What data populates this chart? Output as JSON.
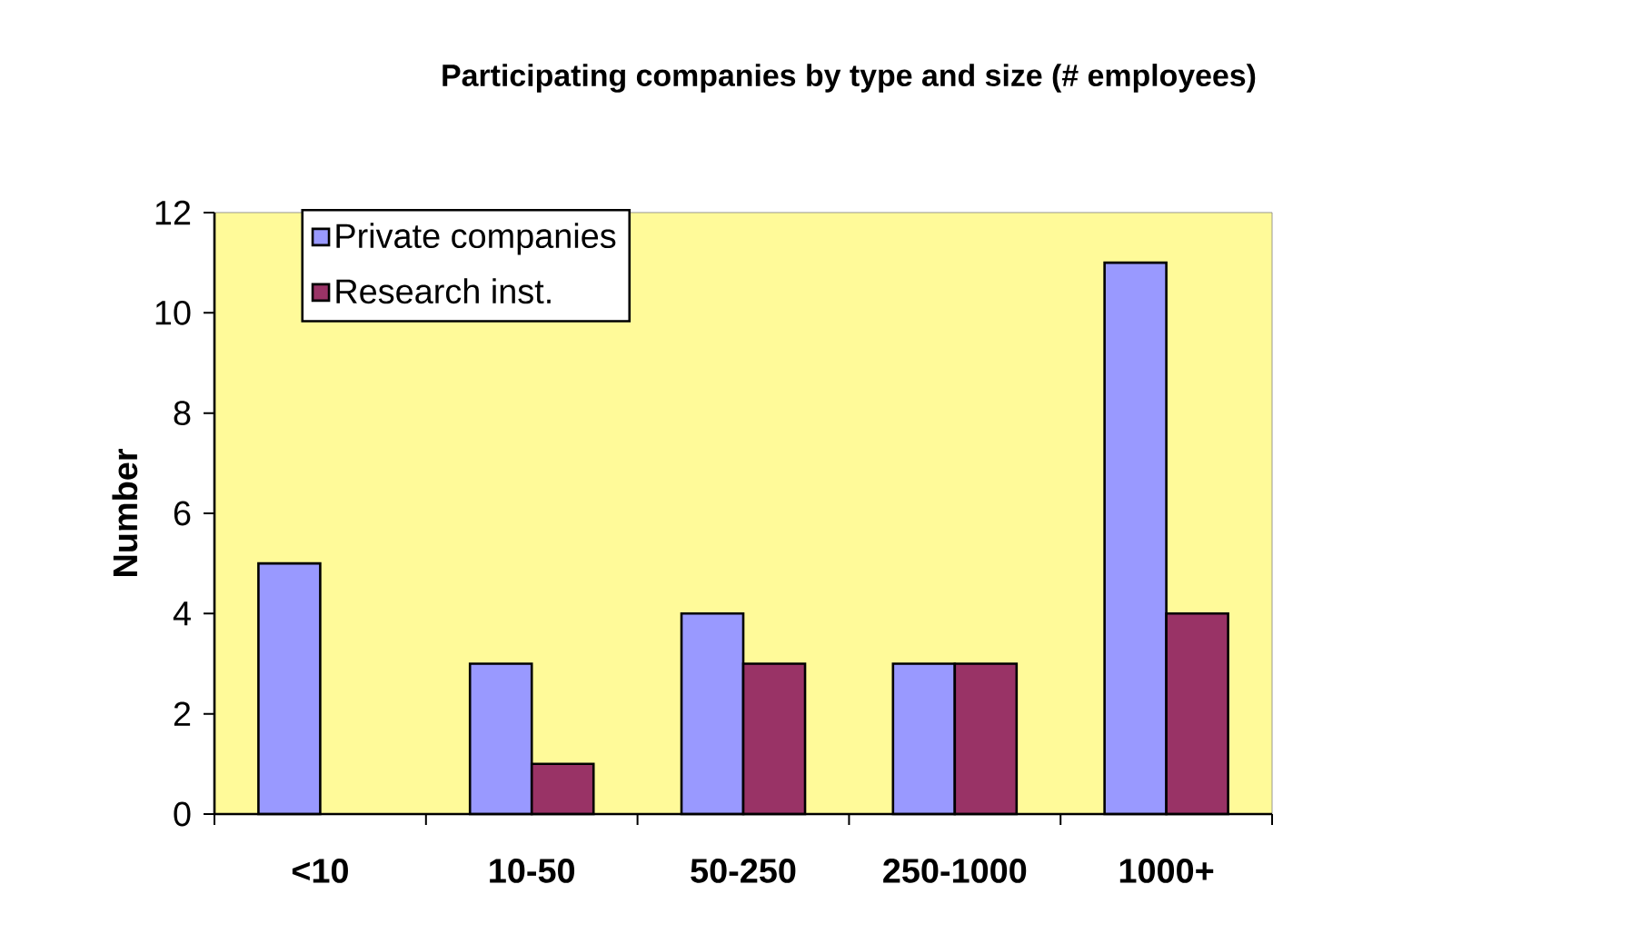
{
  "chart_data": {
    "type": "bar",
    "title": "Participating companies by type and size (# employees)",
    "ylabel": "Number",
    "categories": [
      "<10",
      "10-50",
      "50-250",
      "250-1000",
      "1000+"
    ],
    "series": [
      {
        "name": "Private companies",
        "color": "#9999ff",
        "values": [
          5,
          3,
          4,
          3,
          11
        ]
      },
      {
        "name": "Research inst.",
        "color": "#993366",
        "values": [
          null,
          1,
          3,
          3,
          4
        ]
      }
    ],
    "ylim": [
      0,
      12
    ],
    "yticks": [
      0,
      2,
      4,
      6,
      8,
      10,
      12
    ],
    "legend": "top left"
  }
}
